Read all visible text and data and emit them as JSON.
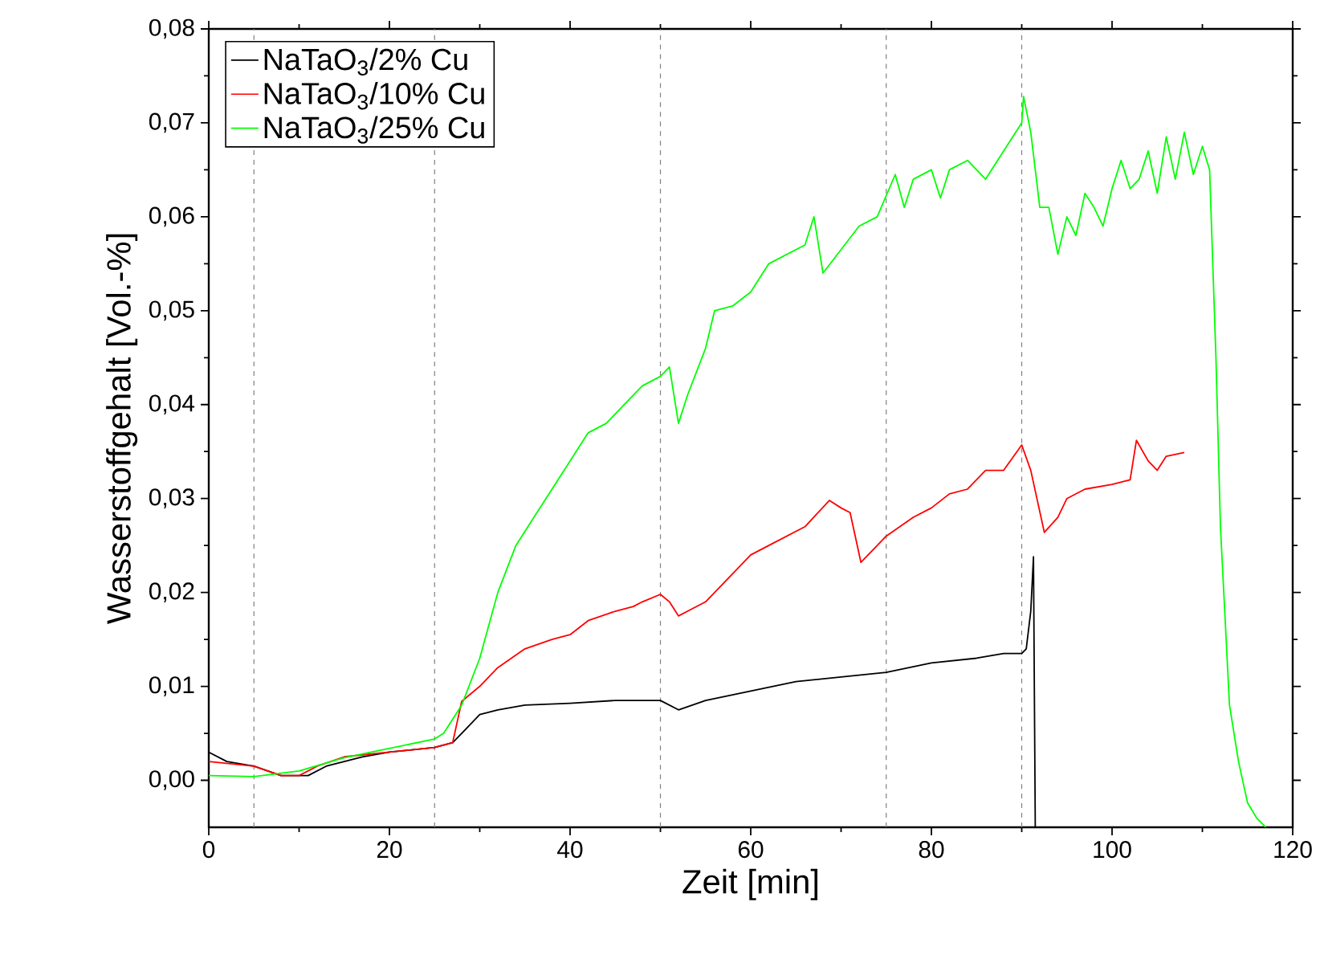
{
  "chart_data": {
    "type": "line",
    "xlabel": "Zeit [min]",
    "ylabel": "Wasserstoffgehalt [Vol.-%]",
    "xlim": [
      0,
      120
    ],
    "ylim": [
      -0.005,
      0.08
    ],
    "xticks": [
      0,
      20,
      40,
      60,
      80,
      100,
      120
    ],
    "yticks": [
      {
        "value": 0,
        "label": "0,00"
      },
      {
        "value": 0.01,
        "label": "0,01"
      },
      {
        "value": 0.02,
        "label": "0,02"
      },
      {
        "value": 0.03,
        "label": "0,03"
      },
      {
        "value": 0.04,
        "label": "0,04"
      },
      {
        "value": 0.05,
        "label": "0,05"
      },
      {
        "value": 0.06,
        "label": "0,06"
      },
      {
        "value": 0.07,
        "label": "0,07"
      },
      {
        "value": 0.08,
        "label": "0,08"
      }
    ],
    "legend": "top left",
    "marker": "none",
    "line_style": "solid",
    "ref_lines": [
      {
        "axis": "x",
        "value": 5,
        "color": "#808080",
        "line_style": "dashed"
      },
      {
        "axis": "x",
        "value": 25,
        "color": "#808080",
        "line_style": "dashed"
      },
      {
        "axis": "x",
        "value": 50,
        "color": "#808080",
        "line_style": "dashed"
      },
      {
        "axis": "x",
        "value": 75,
        "color": "#808080",
        "line_style": "dashed"
      },
      {
        "axis": "x",
        "value": 90,
        "color": "#808080",
        "line_style": "dashed"
      }
    ],
    "series": [
      {
        "name": "NaTaO$_{3}$/2% Cu",
        "color": "#000000",
        "x": [
          0,
          2,
          5,
          8,
          11,
          13,
          17,
          20,
          25,
          27,
          28,
          30,
          32,
          35,
          40,
          45,
          50,
          52,
          55,
          60,
          65,
          70,
          75,
          80,
          85,
          88,
          90,
          90.5,
          91,
          91.3,
          91.5
        ],
        "values": [
          0.003,
          0.002,
          0.0015,
          0.0005,
          0.0005,
          0.0015,
          0.0025,
          0.003,
          0.0035,
          0.004,
          0.005,
          0.007,
          0.0075,
          0.008,
          0.0082,
          0.0085,
          0.0085,
          0.0075,
          0.0085,
          0.0095,
          0.0105,
          0.011,
          0.0115,
          0.0125,
          0.013,
          0.0135,
          0.0135,
          0.014,
          0.018,
          0.0238,
          -0.005
        ]
      },
      {
        "name": "NaTaO$_{3}$/10% Cu",
        "color": "#ff0000",
        "x": [
          0,
          5,
          8,
          10,
          12,
          15,
          20,
          25,
          27,
          28,
          30,
          32,
          35,
          38,
          40,
          42,
          45,
          47,
          48,
          50,
          51,
          52,
          53,
          55,
          58,
          60,
          62,
          64,
          66,
          68.7,
          70,
          71,
          72.2,
          74,
          75,
          78,
          80,
          82,
          84,
          86,
          88,
          90,
          91,
          92.5,
          94,
          95,
          97,
          100,
          102,
          102.7,
          104,
          105,
          106,
          108
        ],
        "values": [
          0.002,
          0.0015,
          0.0005,
          0.0005,
          0.0015,
          0.0025,
          0.003,
          0.0035,
          0.004,
          0.0084,
          0.01,
          0.012,
          0.014,
          0.015,
          0.0155,
          0.017,
          0.018,
          0.0185,
          0.019,
          0.0198,
          0.019,
          0.0175,
          0.018,
          0.019,
          0.022,
          0.024,
          0.025,
          0.026,
          0.027,
          0.0298,
          0.029,
          0.0285,
          0.0232,
          0.025,
          0.026,
          0.028,
          0.029,
          0.0305,
          0.031,
          0.033,
          0.033,
          0.0357,
          0.033,
          0.0264,
          0.028,
          0.03,
          0.031,
          0.0315,
          0.032,
          0.0362,
          0.034,
          0.033,
          0.0345,
          0.0349
        ]
      },
      {
        "name": "NaTaO$_{3}$/25% Cu",
        "color": "#00ff00",
        "x": [
          0,
          5,
          10,
          15,
          20,
          25,
          26,
          28,
          30,
          32,
          34,
          36,
          38,
          40,
          42,
          44,
          46,
          48,
          50,
          51,
          52,
          53,
          55,
          56,
          58,
          60,
          62,
          64,
          66,
          67,
          68,
          70,
          72,
          74,
          76,
          77,
          78,
          80,
          81,
          82,
          84,
          86,
          88,
          90,
          90.2,
          91,
          92,
          93,
          94,
          95,
          96,
          97,
          98,
          99,
          100,
          101,
          102,
          103,
          104,
          105,
          106,
          107,
          108,
          109,
          110,
          110.8,
          111.5,
          112,
          113,
          114,
          115,
          116,
          117
        ],
        "values": [
          0.0005,
          0.0004,
          0.001,
          0.0024,
          0.0034,
          0.0044,
          0.005,
          0.008,
          0.013,
          0.02,
          0.025,
          0.028,
          0.031,
          0.034,
          0.037,
          0.038,
          0.04,
          0.042,
          0.043,
          0.044,
          0.038,
          0.041,
          0.046,
          0.05,
          0.0505,
          0.052,
          0.055,
          0.056,
          0.057,
          0.06,
          0.054,
          0.0565,
          0.059,
          0.06,
          0.0645,
          0.061,
          0.064,
          0.065,
          0.062,
          0.065,
          0.066,
          0.064,
          0.067,
          0.07,
          0.0728,
          0.069,
          0.061,
          0.061,
          0.056,
          0.06,
          0.058,
          0.0625,
          0.061,
          0.059,
          0.063,
          0.066,
          0.063,
          0.064,
          0.067,
          0.0625,
          0.0685,
          0.064,
          0.069,
          0.0645,
          0.0675,
          0.065,
          0.045,
          0.027,
          0.008,
          0.002,
          -0.0024,
          -0.004,
          -0.005
        ]
      }
    ]
  }
}
